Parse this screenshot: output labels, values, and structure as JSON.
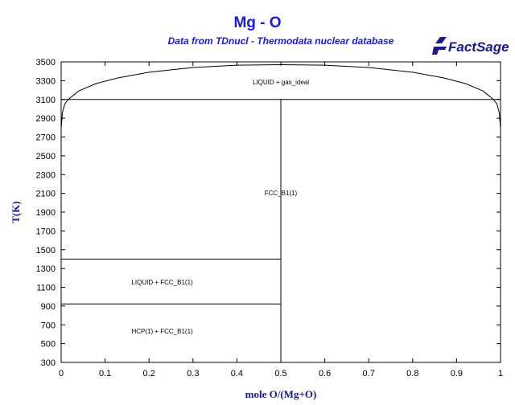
{
  "chart_data": {
    "type": "line",
    "title": "Mg - O",
    "subtitle": "Data from TDnucl - Thermodata nuclear database",
    "logo_text": "FactSage",
    "xlabel": "mole O/(Mg+O)",
    "ylabel": "T(K)",
    "xlim": [
      0,
      1
    ],
    "ylim": [
      300,
      3500
    ],
    "x_ticks": [
      "0",
      "0.1",
      "0.2",
      "0.3",
      "0.4",
      "0.5",
      "0.6",
      "0.7",
      "0.8",
      "0.9",
      "1"
    ],
    "y_ticks": [
      "300",
      "500",
      "700",
      "900",
      "1100",
      "1300",
      "1500",
      "1700",
      "1900",
      "2100",
      "2300",
      "2500",
      "2700",
      "2900",
      "3100",
      "3300",
      "3500"
    ],
    "series": [
      {
        "points": [
          [
            0.0,
            2790
          ],
          [
            0.003,
            2960
          ],
          [
            0.008,
            3050
          ],
          [
            0.016,
            3100
          ],
          [
            0.04,
            3190
          ],
          [
            0.08,
            3270
          ],
          [
            0.13,
            3330
          ],
          [
            0.2,
            3390
          ],
          [
            0.3,
            3440
          ],
          [
            0.4,
            3465
          ],
          [
            0.5,
            3470
          ],
          [
            0.6,
            3465
          ],
          [
            0.7,
            3440
          ],
          [
            0.8,
            3390
          ],
          [
            0.87,
            3330
          ],
          [
            0.92,
            3270
          ],
          [
            0.96,
            3190
          ],
          [
            0.984,
            3100
          ],
          [
            0.992,
            3050
          ],
          [
            0.997,
            2960
          ],
          [
            1.0,
            2790
          ]
        ]
      },
      {
        "points": [
          [
            0.0,
            3100
          ],
          [
            1.0,
            3100
          ]
        ]
      },
      {
        "points": [
          [
            0.5,
            300
          ],
          [
            0.5,
            3100
          ]
        ]
      },
      {
        "points": [
          [
            0.0,
            1400
          ],
          [
            0.5,
            1400
          ]
        ]
      },
      {
        "points": [
          [
            0.0,
            923
          ],
          [
            0.5,
            923
          ]
        ]
      }
    ],
    "region_labels": [
      {
        "text": "LIQUID + gas_ideal",
        "x": 0.5,
        "y": 3260
      },
      {
        "text": "FCC_B1(1)",
        "x": 0.5,
        "y": 2080
      },
      {
        "text": "LIQUID + FCC_B1(1)",
        "x": 0.23,
        "y": 1130
      },
      {
        "text": "HCP(1) + FCC_B1(1)",
        "x": 0.23,
        "y": 610
      }
    ],
    "grid": false,
    "colors": {
      "title": "#1a1adb",
      "axis_label": "#1a1a8a",
      "lines": "#000000",
      "logo": "#1a1a8a"
    }
  }
}
